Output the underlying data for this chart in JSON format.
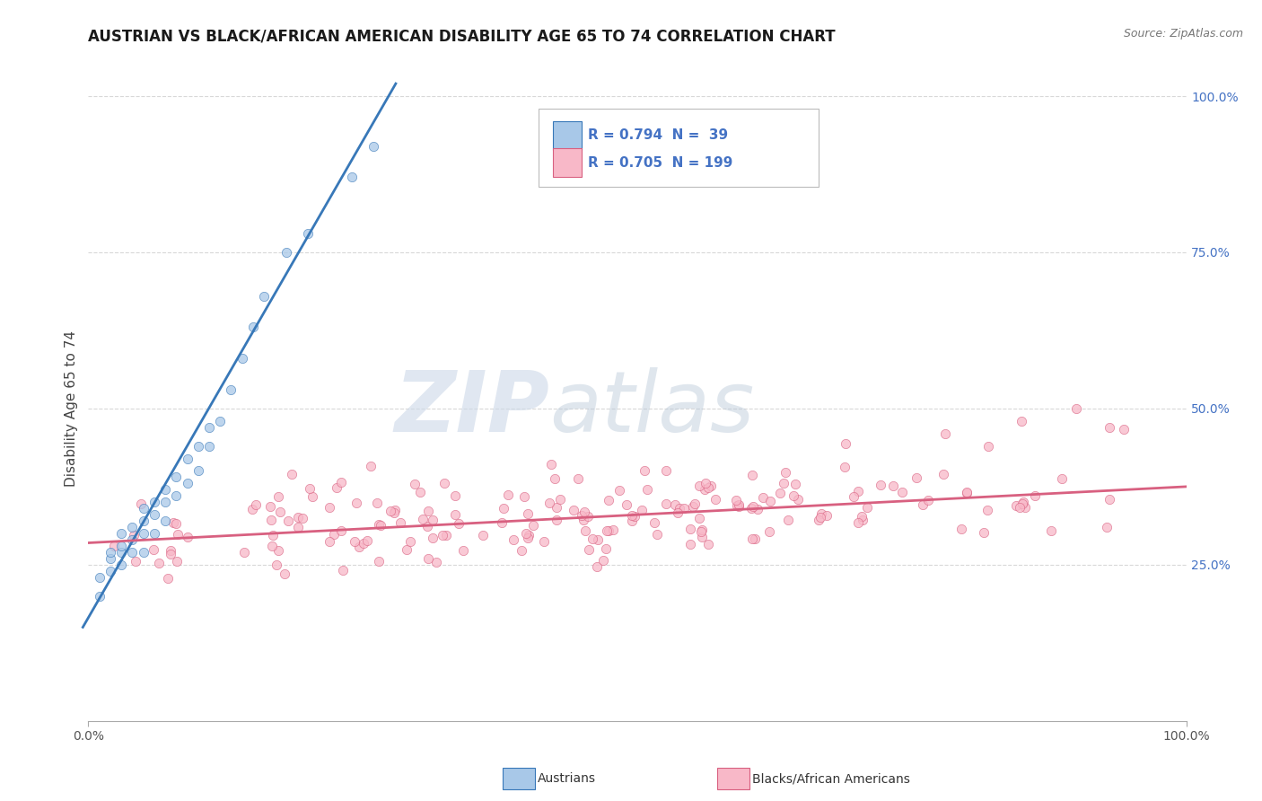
{
  "title": "AUSTRIAN VS BLACK/AFRICAN AMERICAN DISABILITY AGE 65 TO 74 CORRELATION CHART",
  "source_text": "Source: ZipAtlas.com",
  "ylabel": "Disability Age 65 to 74",
  "watermark_zip": "ZIP",
  "watermark_atlas": "atlas",
  "blue_R": 0.794,
  "blue_N": 39,
  "pink_R": 0.705,
  "pink_N": 199,
  "blue_color": "#a8c8e8",
  "blue_line_color": "#3878b8",
  "pink_color": "#f8b8c8",
  "pink_line_color": "#d86080",
  "legend_blue_label": "Austrians",
  "legend_pink_label": "Blacks/African Americans",
  "xlim": [
    0,
    1.0
  ],
  "ylim": [
    0,
    1.0
  ],
  "xtick_labels": [
    "0.0%",
    "100.0%"
  ],
  "xtick_positions": [
    0.0,
    1.0
  ],
  "ytick_labels": [
    "25.0%",
    "50.0%",
    "75.0%",
    "100.0%"
  ],
  "ytick_positions": [
    0.25,
    0.5,
    0.75,
    1.0
  ],
  "blue_scatter_x": [
    0.01,
    0.01,
    0.02,
    0.02,
    0.02,
    0.03,
    0.03,
    0.03,
    0.03,
    0.04,
    0.04,
    0.04,
    0.05,
    0.05,
    0.05,
    0.05,
    0.06,
    0.06,
    0.06,
    0.07,
    0.07,
    0.07,
    0.08,
    0.08,
    0.09,
    0.09,
    0.1,
    0.1,
    0.11,
    0.11,
    0.12,
    0.13,
    0.14,
    0.15,
    0.16,
    0.18,
    0.2,
    0.24,
    0.26
  ],
  "blue_scatter_y": [
    0.2,
    0.23,
    0.24,
    0.26,
    0.27,
    0.25,
    0.27,
    0.28,
    0.3,
    0.27,
    0.29,
    0.31,
    0.27,
    0.3,
    0.32,
    0.34,
    0.3,
    0.33,
    0.35,
    0.32,
    0.35,
    0.37,
    0.36,
    0.39,
    0.38,
    0.42,
    0.4,
    0.44,
    0.44,
    0.47,
    0.48,
    0.53,
    0.58,
    0.63,
    0.68,
    0.75,
    0.78,
    0.87,
    0.92
  ],
  "blue_line_x0": -0.005,
  "blue_line_y0": 0.15,
  "blue_line_x1": 0.28,
  "blue_line_y1": 1.02,
  "pink_line_x0": 0.0,
  "pink_line_y0": 0.285,
  "pink_line_x1": 1.0,
  "pink_line_y1": 0.375,
  "background_color": "#ffffff",
  "grid_color": "#d8d8d8",
  "plot_bg_color": "#ffffff",
  "title_fontsize": 12,
  "axis_label_fontsize": 11,
  "tick_fontsize": 10,
  "legend_fontsize": 11,
  "right_tick_color": "#4472c4"
}
